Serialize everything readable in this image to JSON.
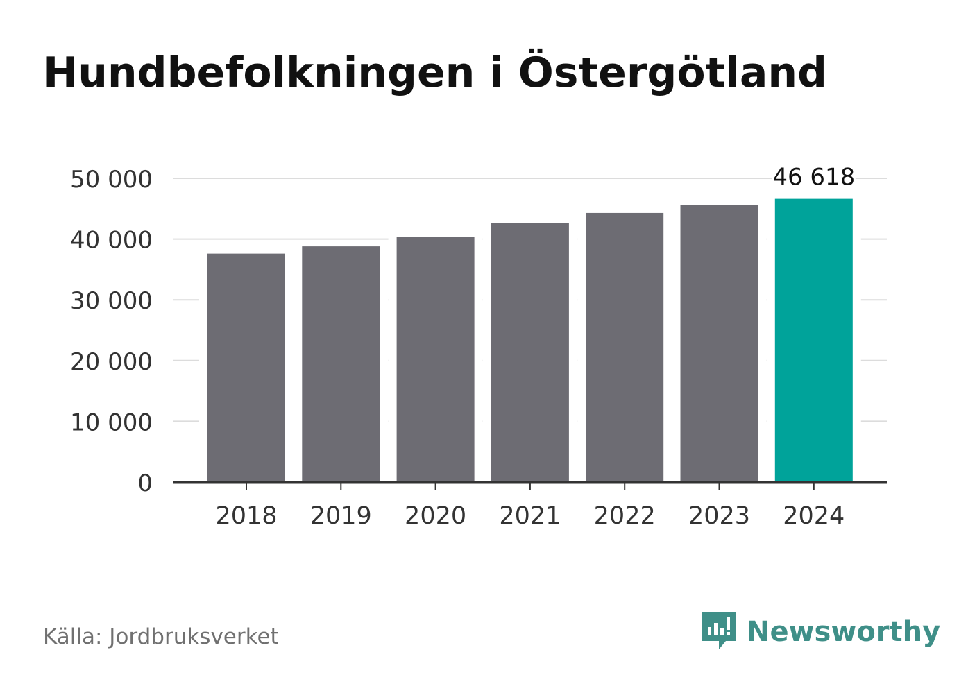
{
  "title": "Hundbefolkningen i Östergötland",
  "source": "Källa: Jordbruksverket",
  "brand": {
    "name": "Newsworthy",
    "icon": "newsworthy-logo-icon",
    "color": "#3f8f88"
  },
  "colors": {
    "bar": "#6d6c73",
    "highlight": "#00a39a",
    "grid": "#dcdcdc",
    "axis": "#333333",
    "text": "#333333"
  },
  "chart_data": {
    "type": "bar",
    "categories": [
      "2018",
      "2019",
      "2020",
      "2021",
      "2022",
      "2023",
      "2024"
    ],
    "values": [
      37600,
      38800,
      40400,
      42600,
      44300,
      45600,
      46618
    ],
    "highlight_index": 6,
    "data_labels": [
      {
        "index": 6,
        "text": "46 618"
      }
    ],
    "ylim": [
      0,
      50000
    ],
    "yticks": [
      0,
      10000,
      20000,
      30000,
      40000,
      50000
    ],
    "ytick_labels": [
      "0",
      "10 000",
      "20 000",
      "30 000",
      "40 000",
      "50 000"
    ],
    "grid": true,
    "legend": "none"
  }
}
